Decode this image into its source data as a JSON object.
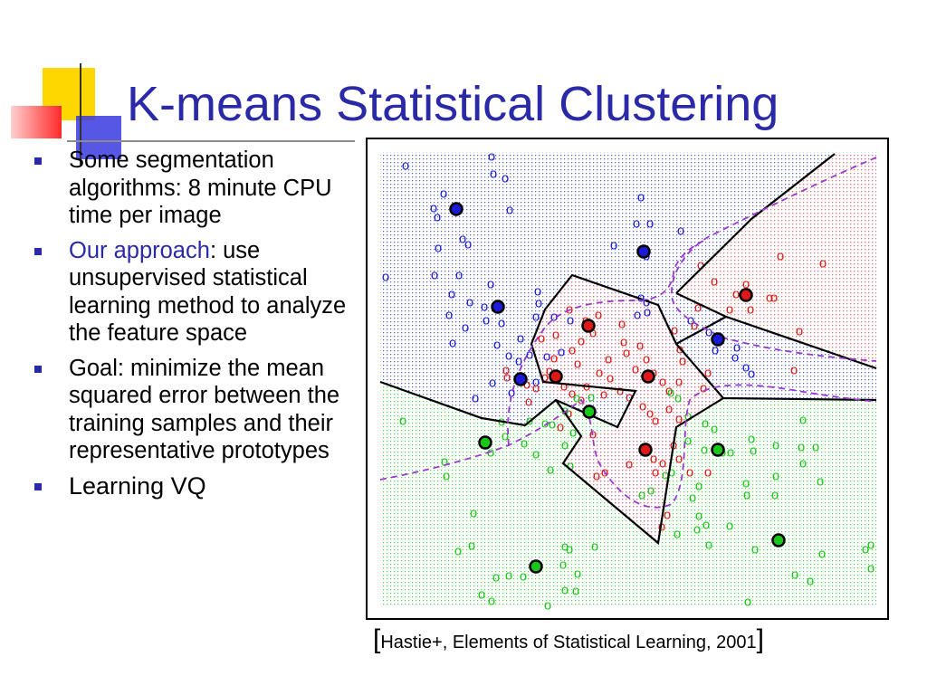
{
  "slide": {
    "title": "K-means Statistical Clustering",
    "bullets": [
      {
        "text": "Some segmentation algorithms: 8 minute CPU time per image"
      },
      {
        "highlight": "Our approach",
        "text": ": use unsupervised statistical learning method to analyze the feature space"
      },
      {
        "text": "Goal: minimize the mean squared error between the training samples and their representative prototypes"
      },
      {
        "text": "Learning VQ"
      }
    ],
    "citation": {
      "open": "[",
      "text": "Hastie+, Elements of Statistical Learning, 2001",
      "close": "]"
    }
  },
  "figure": {
    "marker": "o",
    "colors": {
      "blue": "#1a1ad8",
      "red": "#e01818",
      "green": "#18c818",
      "boundary": "#000000",
      "bayes": "#9a38d0",
      "title": "#2a2aa8"
    }
  }
}
